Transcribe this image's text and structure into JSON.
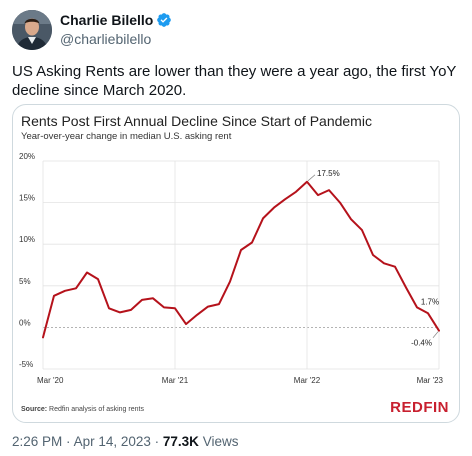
{
  "tweet": {
    "author_name": "Charlie Bilello",
    "author_handle": "@charliebilello",
    "text": "US Asking Rents are lower than they were a year ago, the first YoY decline since March 2020.",
    "time": "2:26 PM",
    "separator": "·",
    "date": "Apr 14, 2023",
    "views_count": "77.3K",
    "views_label": "Views"
  },
  "chart_card": {
    "source_label": "Source:",
    "source_text": "Redfin analysis of asking rents",
    "brand": "REDFIN"
  },
  "colors": {
    "line": "#b5121b",
    "brand": "#c8202f",
    "verified": "#1d9bf0"
  },
  "icons": {
    "verified": "verified-badge-icon"
  },
  "chart_data": {
    "type": "line",
    "title": "Rents Post First Annual Decline Since Start of Pandemic",
    "subtitle": "Year-over-year change in median U.S. asking rent",
    "xlabel": "",
    "ylabel": "",
    "ylim": [
      -5,
      20
    ],
    "yticks": [
      -5,
      0,
      5,
      10,
      15,
      20
    ],
    "ytick_labels": [
      "-5%",
      "0%",
      "5%",
      "10%",
      "15%",
      "20%"
    ],
    "xticks": [
      0,
      12,
      24,
      36
    ],
    "xtick_labels": [
      "Mar '20",
      "Mar '21",
      "Mar '22",
      "Mar '23"
    ],
    "grid": "horizontal",
    "zero_line": "dashed",
    "series": [
      {
        "months": [
          "2020-03",
          "2020-04",
          "2020-05",
          "2020-06",
          "2020-07",
          "2020-08",
          "2020-09",
          "2020-10",
          "2020-11",
          "2020-12",
          "2021-01",
          "2021-02",
          "2021-03",
          "2021-04",
          "2021-05",
          "2021-06",
          "2021-07",
          "2021-08",
          "2021-09",
          "2021-10",
          "2021-11",
          "2021-12",
          "2022-01",
          "2022-02",
          "2022-03",
          "2022-04",
          "2022-05",
          "2022-06",
          "2022-07",
          "2022-08",
          "2022-09",
          "2022-10",
          "2022-11",
          "2022-12",
          "2023-01",
          "2023-02",
          "2023-03"
        ],
        "values": [
          -1.2,
          3.8,
          4.4,
          4.7,
          6.6,
          5.8,
          2.3,
          1.8,
          2.1,
          3.3,
          3.5,
          2.4,
          2.3,
          0.4,
          1.5,
          2.5,
          2.8,
          5.5,
          9.3,
          10.2,
          13.1,
          14.4,
          15.4,
          16.3,
          17.5,
          15.9,
          16.5,
          15.0,
          13.0,
          11.7,
          8.7,
          7.7,
          7.3,
          4.8,
          2.4,
          1.7,
          -0.4
        ]
      }
    ],
    "annotations": [
      {
        "x": 24,
        "y": 17.5,
        "text": "17.5%"
      },
      {
        "x": 35,
        "y": 1.7,
        "text": "1.7%"
      },
      {
        "x": 36,
        "y": -0.4,
        "text": "-0.4%"
      }
    ]
  }
}
